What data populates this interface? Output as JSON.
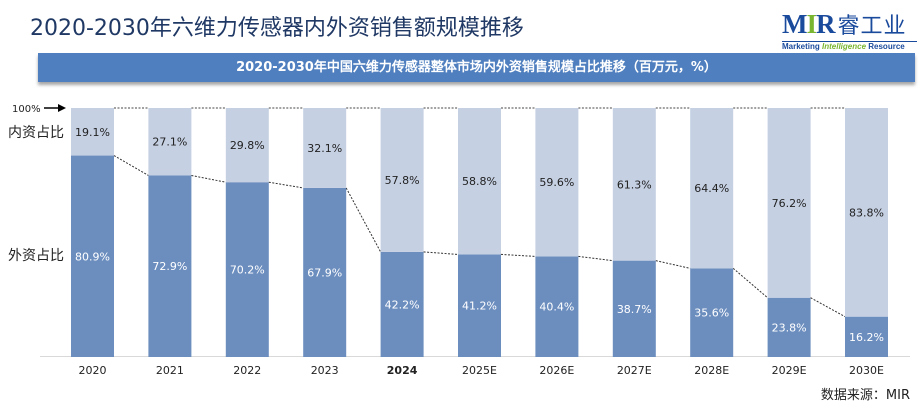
{
  "header": {
    "title": "2020-2030年六维力传感器内外资销售额规模推移"
  },
  "logo": {
    "main_m": "M",
    "main_i": "I",
    "main_r": "R",
    "cn": "睿工业",
    "sub_1": "Marketing ",
    "sub_2": "Intelligence",
    "sub_3": " Resource"
  },
  "source": "数据来源：MIR",
  "chart_data": {
    "type": "bar",
    "stacked": "percent",
    "title": "2020-2030年中国六维力传感器整体市场内外资销售规模占比推移（百万元，%）",
    "categories": [
      "2020",
      "2021",
      "2022",
      "2023",
      "2024",
      "2025E",
      "2026E",
      "2027E",
      "2028E",
      "2029E",
      "2030E"
    ],
    "bold_category": "2024",
    "series": [
      {
        "name": "外资占比",
        "color": "#6c8ebf",
        "values": [
          80.9,
          72.9,
          70.2,
          67.9,
          42.2,
          41.2,
          40.4,
          38.7,
          35.6,
          23.8,
          16.2
        ]
      },
      {
        "name": "内资占比",
        "color": "#c5d0e3",
        "values": [
          19.1,
          27.1,
          29.8,
          32.1,
          57.8,
          58.8,
          59.6,
          61.3,
          64.4,
          76.2,
          83.8
        ]
      }
    ],
    "value_suffix": "%",
    "ylim": [
      0,
      100
    ],
    "top_marker": "100%",
    "grid": false,
    "legend": "left, inline labels"
  }
}
